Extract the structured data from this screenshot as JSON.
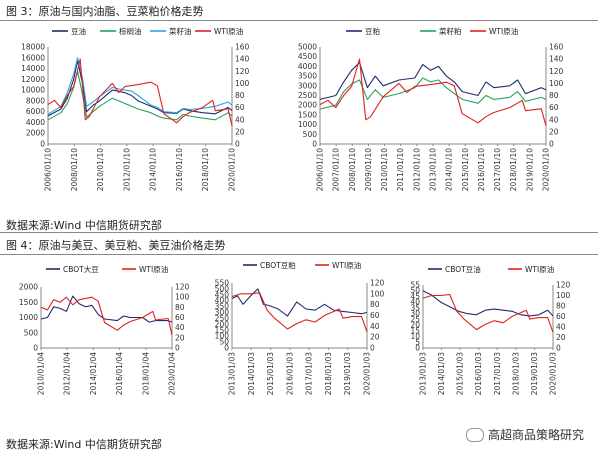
{
  "figure3": {
    "title": "图 3：原油与国内油脂、豆菜粕价格走势",
    "source": "数据来源:Wind 中信期货研究部"
  },
  "figure4": {
    "title": "图 4：原油与美豆、美豆粕、美豆油价格走势",
    "source": "数据来源:Wind 中信期货研究部"
  },
  "watermark": {
    "text": "高超商品策略研究",
    "icon": "wechat-icon"
  },
  "chart_data": [
    {
      "type": "line",
      "legend": [
        "豆油",
        "棕榈油",
        "菜籽油",
        "WTI原油"
      ],
      "colors": [
        "#1f2d6e",
        "#2ca05a",
        "#26a7d6",
        "#e02020"
      ],
      "xticks": [
        "2006/01/10",
        "2008/01/10",
        "2010/01/10",
        "2012/01/10",
        "2014/01/10",
        "2016/01/10",
        "2018/01/10",
        "2020/01/10"
      ],
      "xrange": [
        2006.0,
        2020.3
      ],
      "ylim": [
        0,
        18000
      ],
      "yticks": [
        0,
        2000,
        4000,
        6000,
        8000,
        10000,
        12000,
        14000,
        16000,
        18000
      ],
      "y2lim": [
        0,
        160
      ],
      "y2ticks": [
        0,
        20,
        40,
        60,
        80,
        100,
        120,
        140,
        160
      ],
      "series": [
        {
          "axis": "left",
          "x": [
            2006,
            2007,
            2007.5,
            2008,
            2008.3,
            2008.7,
            2009,
            2009.5,
            2010,
            2011,
            2011.5,
            2012,
            2012.5,
            2013,
            2014,
            2014.5,
            2015,
            2016,
            2016.5,
            2017,
            2018,
            2019,
            2020,
            2020.3
          ],
          "values": [
            5200,
            6500,
            8500,
            12000,
            15500,
            11000,
            6000,
            7200,
            8000,
            10000,
            9800,
            9500,
            9000,
            8000,
            7000,
            6500,
            5800,
            5700,
            6500,
            6200,
            5800,
            5600,
            6800,
            6200
          ]
        },
        {
          "axis": "left",
          "x": [
            2006,
            2007,
            2007.5,
            2008,
            2008.3,
            2008.7,
            2009,
            2009.5,
            2010,
            2011,
            2011.5,
            2012,
            2012.5,
            2013,
            2014,
            2014.5,
            2015,
            2016,
            2016.5,
            2017,
            2018,
            2019,
            2020,
            2020.3
          ],
          "values": [
            4500,
            5800,
            7500,
            10500,
            13500,
            9000,
            5000,
            6000,
            7000,
            8500,
            8000,
            7500,
            7000,
            6500,
            5800,
            5200,
            4800,
            4500,
            5500,
            5200,
            4800,
            4500,
            5800,
            5200
          ]
        },
        {
          "axis": "left",
          "x": [
            2006,
            2007,
            2007.5,
            2008,
            2008.3,
            2008.7,
            2009,
            2009.5,
            2010,
            2011,
            2011.5,
            2012,
            2012.5,
            2013,
            2014,
            2014.5,
            2015,
            2016,
            2016.5,
            2017,
            2018,
            2019,
            2020,
            2020.3
          ],
          "values": [
            5500,
            7000,
            9500,
            13000,
            16000,
            12000,
            7000,
            7800,
            8800,
            10500,
            10200,
            10000,
            9800,
            9000,
            7200,
            6800,
            6000,
            5800,
            6600,
            6400,
            6600,
            7000,
            7800,
            7200
          ]
        },
        {
          "axis": "right",
          "x": [
            2006,
            2006.5,
            2007,
            2007.5,
            2008,
            2008.5,
            2008.9,
            2009.2,
            2010,
            2011,
            2011.5,
            2012,
            2013,
            2014,
            2014.5,
            2015,
            2016,
            2016.5,
            2017,
            2018,
            2018.8,
            2019,
            2020,
            2020.3
          ],
          "values": [
            65,
            72,
            60,
            80,
            95,
            140,
            40,
            45,
            78,
            100,
            85,
            95,
            98,
            102,
            96,
            50,
            35,
            45,
            52,
            60,
            72,
            55,
            58,
            30
          ]
        }
      ]
    },
    {
      "type": "line",
      "legend": [
        "豆粕",
        "菜籽粕",
        "WTI原油"
      ],
      "colors": [
        "#1f2d6e",
        "#2ca05a",
        "#e02020"
      ],
      "xticks": [
        "2006/01/10",
        "2007/01/10",
        "2008/01/10",
        "2009/01/10",
        "2010/01/10",
        "2011/01/10",
        "2012/01/10",
        "2013/01/10",
        "2014/01/10",
        "2015/01/10",
        "2016/01/10",
        "2017/01/10",
        "2018/01/10",
        "2019/01/10",
        "2020/01/10"
      ],
      "xrange": [
        2006.0,
        2020.3
      ],
      "ylim": [
        0,
        5000
      ],
      "yticks": [
        0,
        500,
        1000,
        1500,
        2000,
        2500,
        3000,
        3500,
        4000,
        4500,
        5000
      ],
      "y2lim": [
        0,
        160
      ],
      "y2ticks": [
        0,
        20,
        40,
        60,
        80,
        100,
        120,
        140,
        160
      ],
      "series": [
        {
          "axis": "left",
          "x": [
            2006,
            2007,
            2007.5,
            2008,
            2008.5,
            2009,
            2009.5,
            2010,
            2011,
            2012,
            2012.5,
            2013,
            2013.5,
            2014,
            2014.5,
            2015,
            2016,
            2016.5,
            2017,
            2018,
            2018.5,
            2019,
            2020,
            2020.3
          ],
          "values": [
            2300,
            2500,
            3200,
            3800,
            4200,
            2900,
            3500,
            3000,
            3300,
            3400,
            4100,
            3800,
            4000,
            3500,
            3200,
            2700,
            2500,
            3200,
            2900,
            3000,
            3300,
            2600,
            2900,
            2800
          ]
        },
        {
          "axis": "left",
          "x": [
            2006,
            2007,
            2007.5,
            2008,
            2008.5,
            2009,
            2009.5,
            2010,
            2011,
            2012,
            2012.5,
            2013,
            2013.5,
            2014,
            2014.5,
            2015,
            2016,
            2016.5,
            2017,
            2018,
            2018.5,
            2019,
            2020,
            2020.3
          ],
          "values": [
            1800,
            2000,
            2700,
            3100,
            3300,
            2300,
            2800,
            2400,
            2600,
            2900,
            3400,
            3200,
            3300,
            2900,
            2600,
            2300,
            2100,
            2500,
            2300,
            2400,
            2700,
            2200,
            2400,
            2300
          ]
        },
        {
          "axis": "right",
          "x": [
            2006,
            2006.5,
            2007,
            2007.5,
            2008,
            2008.5,
            2008.9,
            2009.2,
            2010,
            2011,
            2011.5,
            2012,
            2013,
            2014,
            2014.5,
            2015,
            2016,
            2016.5,
            2017,
            2018,
            2018.8,
            2019,
            2020,
            2020.3
          ],
          "values": [
            65,
            72,
            60,
            80,
            95,
            140,
            40,
            45,
            78,
            100,
            85,
            95,
            98,
            102,
            96,
            50,
            35,
            45,
            52,
            60,
            72,
            55,
            58,
            30
          ]
        }
      ]
    },
    {
      "type": "line",
      "legend": [
        "CBOT大豆",
        "WTI原油"
      ],
      "colors": [
        "#1f2d6e",
        "#e02020"
      ],
      "xticks": [
        "2010/01/04",
        "2012/01/04",
        "2014/01/04",
        "2016/01/04",
        "2018/01/04",
        "2020/01/04"
      ],
      "xrange": [
        2010.0,
        2020.3
      ],
      "ylim": [
        0,
        2000
      ],
      "yticks": [
        0,
        500,
        1000,
        1500,
        2000
      ],
      "y2lim": [
        0,
        120
      ],
      "y2ticks": [
        0,
        20,
        40,
        60,
        80,
        100,
        120
      ],
      "series": [
        {
          "axis": "left",
          "x": [
            2010,
            2010.5,
            2011,
            2011.5,
            2012,
            2012.5,
            2013,
            2013.5,
            2014,
            2014.5,
            2015,
            2016,
            2016.5,
            2017,
            2018,
            2018.5,
            2019,
            2020,
            2020.3
          ],
          "values": [
            950,
            1000,
            1350,
            1300,
            1200,
            1700,
            1450,
            1350,
            1400,
            1100,
            950,
            900,
            1050,
            1000,
            1000,
            850,
            900,
            900,
            850
          ]
        },
        {
          "axis": "right",
          "x": [
            2010,
            2010.5,
            2011,
            2011.5,
            2012,
            2012.5,
            2013,
            2014,
            2014.5,
            2015,
            2016,
            2016.5,
            2017,
            2018,
            2018.8,
            2019,
            2020,
            2020.3
          ],
          "values": [
            80,
            75,
            95,
            90,
            100,
            85,
            95,
            100,
            92,
            50,
            35,
            45,
            52,
            60,
            72,
            55,
            58,
            25
          ]
        }
      ]
    },
    {
      "type": "line",
      "legend": [
        "CBOT豆粕",
        "WTI原油"
      ],
      "colors": [
        "#1f2d6e",
        "#e02020"
      ],
      "xticks": [
        "2013/01/03",
        "2014/01/03",
        "2015/01/03",
        "2016/01/03",
        "2017/01/03",
        "2018/01/03",
        "2019/01/03",
        "2020/01/03"
      ],
      "xrange": [
        2013.0,
        2020.3
      ],
      "ylim": [
        0,
        550
      ],
      "yticks": [
        0,
        50,
        100,
        150,
        200,
        250,
        300,
        350,
        400,
        450,
        500,
        550
      ],
      "y2lim": [
        0,
        120
      ],
      "y2ticks": [
        0,
        20,
        40,
        60,
        80,
        100,
        120
      ],
      "series": [
        {
          "axis": "left",
          "x": [
            2013,
            2013.3,
            2013.6,
            2014,
            2014.4,
            2014.7,
            2015,
            2015.5,
            2016,
            2016.5,
            2017,
            2017.5,
            2018,
            2018.5,
            2019,
            2019.5,
            2020,
            2020.3
          ],
          "values": [
            420,
            440,
            370,
            440,
            500,
            370,
            360,
            330,
            270,
            390,
            330,
            320,
            370,
            320,
            310,
            300,
            290,
            300
          ]
        },
        {
          "axis": "right",
          "x": [
            2013,
            2013.5,
            2014,
            2014.5,
            2014.9,
            2015.3,
            2016,
            2016.5,
            2017,
            2017.5,
            2018,
            2018.8,
            2019,
            2019.5,
            2020,
            2020.3
          ],
          "values": [
            95,
            100,
            100,
            102,
            70,
            55,
            35,
            45,
            52,
            48,
            60,
            72,
            55,
            58,
            58,
            30
          ]
        }
      ]
    },
    {
      "type": "line",
      "legend": [
        "CBOT豆油",
        "WTI原油"
      ],
      "colors": [
        "#1f2d6e",
        "#e02020"
      ],
      "xticks": [
        "2013/01/03",
        "2014/01/03",
        "2015/01/03",
        "2016/01/03",
        "2017/01/03",
        "2018/01/03",
        "2019/01/03",
        "2020/01/03"
      ],
      "xrange": [
        2013.0,
        2020.3
      ],
      "ylim": [
        0,
        55
      ],
      "yticks": [
        0,
        5,
        10,
        15,
        20,
        25,
        30,
        35,
        40,
        45,
        50,
        55
      ],
      "y2lim": [
        0,
        120
      ],
      "y2ticks": [
        0,
        20,
        40,
        60,
        80,
        100,
        120
      ],
      "series": [
        {
          "axis": "left",
          "x": [
            2013,
            2013.5,
            2014,
            2014.5,
            2015,
            2015.5,
            2016,
            2016.5,
            2017,
            2017.5,
            2018,
            2018.5,
            2019,
            2019.5,
            2020,
            2020.3
          ],
          "values": [
            50,
            46,
            40,
            36,
            32,
            30,
            29,
            33,
            34,
            33,
            32,
            29,
            28,
            29,
            33,
            28
          ]
        },
        {
          "axis": "right",
          "x": [
            2013,
            2013.5,
            2014,
            2014.5,
            2014.9,
            2015.3,
            2016,
            2016.5,
            2017,
            2017.5,
            2018,
            2018.8,
            2019,
            2019.5,
            2020,
            2020.3
          ],
          "values": [
            95,
            100,
            100,
            102,
            70,
            55,
            35,
            45,
            52,
            48,
            60,
            72,
            55,
            58,
            58,
            30
          ]
        }
      ]
    }
  ]
}
